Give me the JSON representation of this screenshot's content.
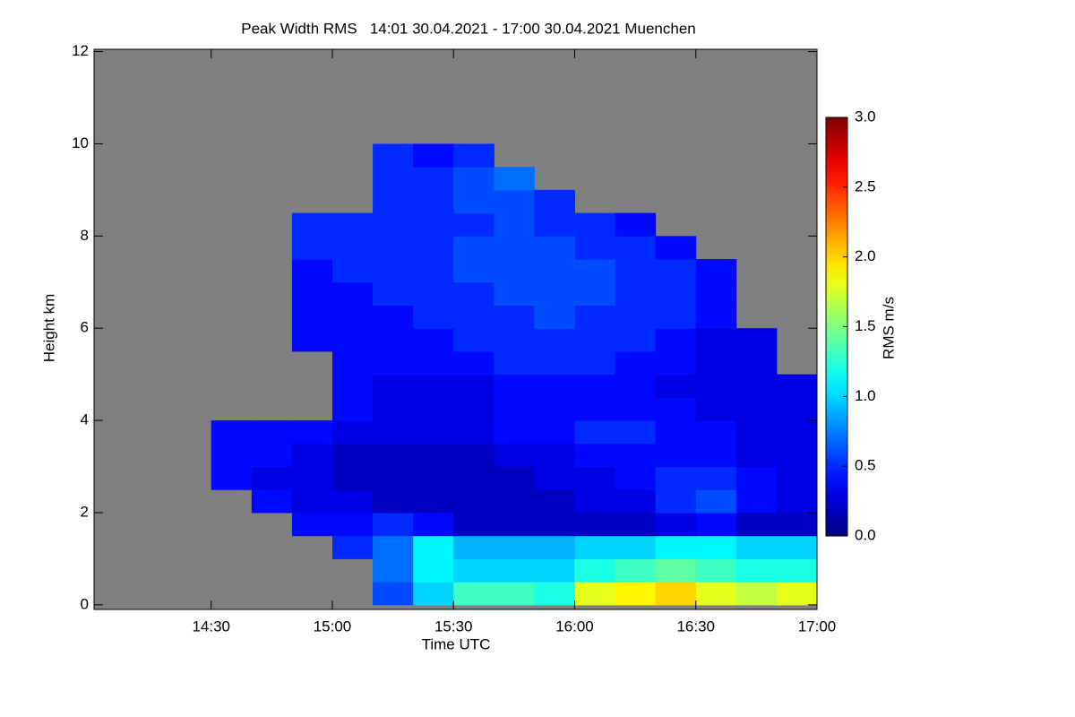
{
  "chart_data": {
    "type": "heatmap",
    "title": "Peak Width RMS   14:01 30.04.2021 - 17:00 30.04.2021 Muenchen",
    "x_label": "Time UTC",
    "y_label": "Height km",
    "colorbar_label": "RMS m/s",
    "colormap": "jet",
    "background": "#808080",
    "xlim": [
      "14:01",
      "17:00"
    ],
    "xticks": [
      "14:30",
      "15:00",
      "15:30",
      "16:00",
      "16:30",
      "17:00"
    ],
    "ylim": [
      -0.1,
      12.05
    ],
    "yticks": [
      0,
      2,
      4,
      6,
      8,
      10,
      12
    ],
    "zlim": [
      0,
      3
    ],
    "zticks": [
      {
        "value": 0,
        "label": "0.0"
      },
      {
        "value": 0.5,
        "label": "0.5"
      },
      {
        "value": 1,
        "label": "1.0"
      },
      {
        "value": 1.5,
        "label": "1.5"
      },
      {
        "value": 2,
        "label": "2.0"
      },
      {
        "value": 2.5,
        "label": "2.5"
      },
      {
        "value": 3,
        "label": "3.0"
      }
    ],
    "x": [
      "14:01",
      "14:10",
      "14:20",
      "14:30",
      "14:40",
      "14:50",
      "15:00",
      "15:10",
      "15:20",
      "15:30",
      "15:40",
      "15:50",
      "16:00",
      "16:10",
      "16:20",
      "16:30",
      "16:40",
      "16:50",
      "17:00"
    ],
    "y": [
      0,
      0.5,
      1,
      1.5,
      2,
      2.5,
      3,
      3.5,
      4,
      4.5,
      5,
      5.5,
      6,
      6.5,
      7,
      7.5,
      8,
      8.5,
      9,
      9.5,
      10
    ],
    "z": [
      [
        null,
        null,
        null,
        null,
        null,
        null,
        null,
        0.6,
        1.0,
        1.3,
        1.3,
        1.2,
        1.8,
        1.9,
        2.0,
        1.8,
        1.7,
        1.8
      ],
      [
        null,
        null,
        null,
        null,
        null,
        null,
        null,
        0.7,
        1.1,
        1.0,
        1.0,
        1.0,
        1.2,
        1.3,
        1.4,
        1.3,
        1.2,
        1.2
      ],
      [
        null,
        null,
        null,
        null,
        null,
        null,
        0.5,
        0.7,
        1.1,
        0.9,
        0.9,
        0.9,
        1.0,
        1.0,
        1.1,
        1.1,
        1.0,
        1.0
      ],
      [
        null,
        null,
        null,
        null,
        null,
        0.4,
        0.4,
        0.5,
        0.4,
        0.2,
        0.2,
        0.2,
        0.2,
        0.2,
        0.3,
        0.4,
        0.2,
        0.2
      ],
      [
        null,
        null,
        null,
        null,
        0.4,
        0.3,
        0.3,
        0.2,
        0.2,
        0.2,
        0.2,
        0.2,
        0.3,
        0.3,
        0.5,
        0.6,
        0.4,
        0.3
      ],
      [
        null,
        null,
        null,
        0.4,
        0.3,
        0.3,
        0.2,
        0.2,
        0.2,
        0.2,
        0.2,
        0.3,
        0.3,
        0.4,
        0.5,
        0.5,
        0.4,
        0.3
      ],
      [
        null,
        null,
        null,
        0.4,
        0.4,
        0.3,
        0.2,
        0.2,
        0.2,
        0.2,
        0.3,
        0.3,
        0.4,
        0.4,
        0.4,
        0.4,
        0.3,
        0.3
      ],
      [
        null,
        null,
        null,
        0.4,
        0.4,
        0.4,
        0.3,
        0.3,
        0.3,
        0.3,
        0.4,
        0.4,
        0.5,
        0.5,
        0.4,
        0.4,
        0.3,
        0.3
      ],
      [
        null,
        null,
        null,
        null,
        null,
        null,
        0.4,
        0.3,
        0.3,
        0.3,
        0.4,
        0.4,
        0.4,
        0.4,
        0.4,
        0.3,
        0.3,
        0.3
      ],
      [
        null,
        null,
        null,
        null,
        null,
        null,
        0.4,
        0.3,
        0.3,
        0.3,
        0.4,
        0.4,
        0.4,
        0.4,
        0.3,
        0.3,
        0.3,
        0.3
      ],
      [
        null,
        null,
        null,
        null,
        null,
        null,
        0.4,
        0.4,
        0.4,
        0.4,
        0.5,
        0.5,
        0.5,
        0.4,
        0.4,
        0.3,
        0.3,
        null
      ],
      [
        null,
        null,
        null,
        null,
        null,
        0.4,
        0.4,
        0.4,
        0.4,
        0.5,
        0.5,
        0.5,
        0.5,
        0.5,
        0.4,
        0.3,
        0.3,
        null
      ],
      [
        null,
        null,
        null,
        null,
        null,
        0.4,
        0.4,
        0.4,
        0.5,
        0.5,
        0.5,
        0.6,
        0.5,
        0.5,
        0.5,
        0.4,
        null,
        null
      ],
      [
        null,
        null,
        null,
        null,
        null,
        0.4,
        0.4,
        0.5,
        0.5,
        0.5,
        0.6,
        0.6,
        0.6,
        0.5,
        0.5,
        0.4,
        null,
        null
      ],
      [
        null,
        null,
        null,
        null,
        null,
        0.4,
        0.5,
        0.5,
        0.5,
        0.6,
        0.6,
        0.6,
        0.6,
        0.5,
        0.5,
        0.4,
        null,
        null
      ],
      [
        null,
        null,
        null,
        null,
        null,
        0.5,
        0.5,
        0.5,
        0.5,
        0.6,
        0.6,
        0.6,
        0.5,
        0.5,
        0.4,
        null,
        null,
        null
      ],
      [
        null,
        null,
        null,
        null,
        null,
        0.5,
        0.5,
        0.5,
        0.5,
        0.5,
        0.6,
        0.5,
        0.5,
        0.4,
        null,
        null,
        null,
        null
      ],
      [
        null,
        null,
        null,
        null,
        null,
        null,
        null,
        0.5,
        0.5,
        0.6,
        0.6,
        0.5,
        null,
        null,
        null,
        null,
        null,
        null
      ],
      [
        null,
        null,
        null,
        null,
        null,
        null,
        null,
        0.5,
        0.5,
        0.6,
        0.7,
        null,
        null,
        null,
        null,
        null,
        null,
        null
      ],
      [
        null,
        null,
        null,
        null,
        null,
        null,
        null,
        0.5,
        0.4,
        0.5,
        null,
        null,
        null,
        null,
        null,
        null,
        null,
        null
      ]
    ]
  }
}
